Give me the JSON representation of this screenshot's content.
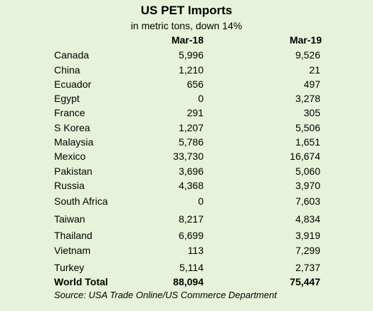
{
  "title": "US PET Imports",
  "subtitle": "in metric tons, down 14%",
  "columns": [
    "Mar-18",
    "Mar-19"
  ],
  "rows": [
    {
      "country": "Canada",
      "mar18": "5,996",
      "mar19": "9,526"
    },
    {
      "country": "China",
      "mar18": "1,210",
      "mar19": "21"
    },
    {
      "country": "Ecuador",
      "mar18": "656",
      "mar19": "497"
    },
    {
      "country": "Egypt",
      "mar18": "0",
      "mar19": "3,278"
    },
    {
      "country": "France",
      "mar18": "291",
      "mar19": "305"
    },
    {
      "country": "S Korea",
      "mar18": "1,207",
      "mar19": "5,506"
    },
    {
      "country": "Malaysia",
      "mar18": "5,786",
      "mar19": "1,651"
    },
    {
      "country": "Mexico",
      "mar18": "33,730",
      "mar19": "16,674"
    },
    {
      "country": "Pakistan",
      "mar18": "3,696",
      "mar19": "5,060"
    },
    {
      "country": "Russia",
      "mar18": "4,368",
      "mar19": "3,970"
    },
    {
      "country": "South Africa",
      "mar18": "0",
      "mar19": "7,603"
    },
    {
      "country": "Taiwan",
      "mar18": "8,217",
      "mar19": "4,834"
    },
    {
      "country": "Thailand",
      "mar18": "6,699",
      "mar19": "3,919"
    },
    {
      "country": "Vietnam",
      "mar18": "113",
      "mar19": "7,299"
    },
    {
      "country": "Turkey",
      "mar18": "5,114",
      "mar19": "2,737"
    }
  ],
  "total": {
    "label": "World Total",
    "mar18": "88,094",
    "mar19": "75,447"
  },
  "source": "Source: USA Trade Online/US Commerce Department",
  "colors": {
    "background": "#e6f3da",
    "text": "#000000"
  }
}
